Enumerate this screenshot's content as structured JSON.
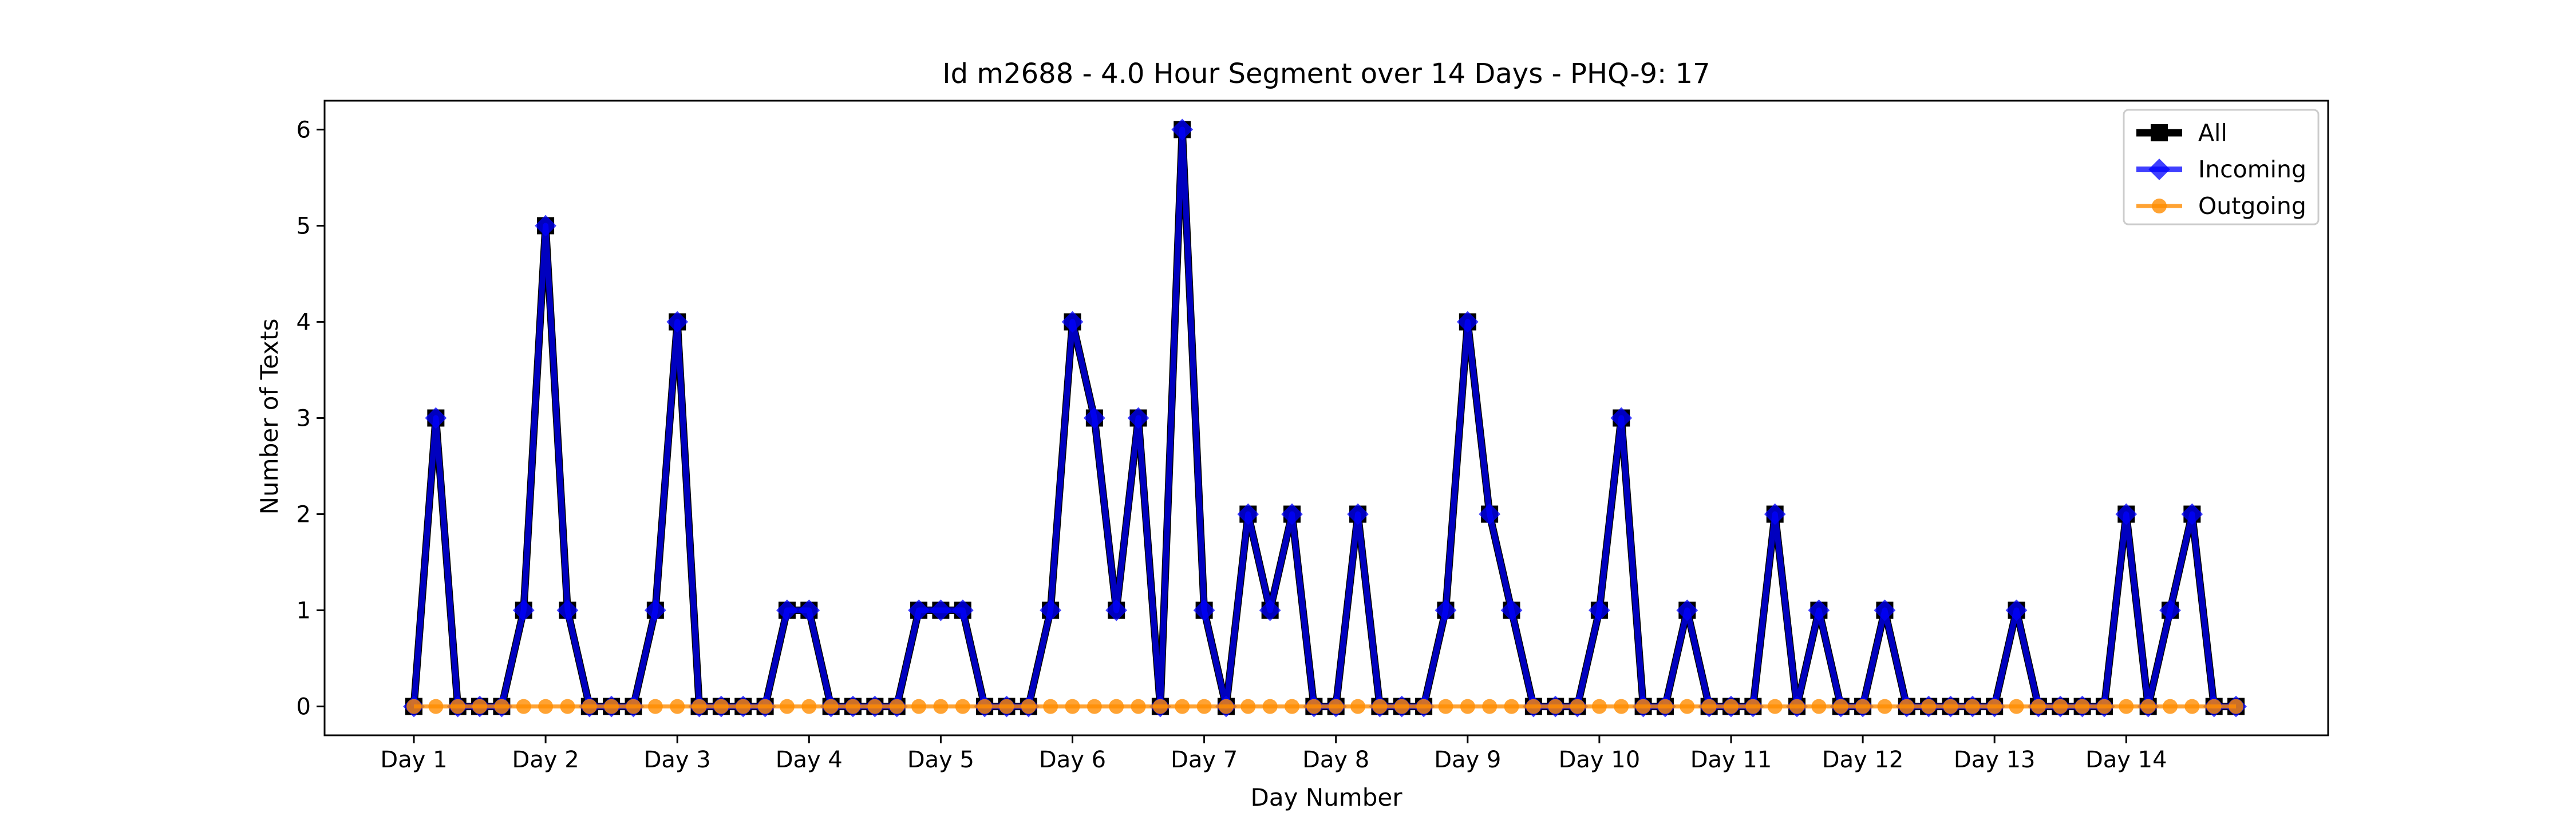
{
  "chart_data": {
    "type": "line",
    "title": "Id m2688 - 4.0 Hour Segment over 14 Days - PHQ-9: 17",
    "xlabel": "Day Number",
    "ylabel": "Number of Texts",
    "x_tick_labels": [
      "Day 1",
      "Day 2",
      "Day 3",
      "Day 4",
      "Day 5",
      "Day 6",
      "Day 7",
      "Day 8",
      "Day 9",
      "Day 10",
      "Day 11",
      "Day 12",
      "Day 13",
      "Day 14"
    ],
    "y_ticks": [
      0,
      1,
      2,
      3,
      4,
      5,
      6
    ],
    "ylim": [
      -0.3,
      6.3
    ],
    "grid": false,
    "legend_position": "top-right",
    "legend": [
      "All",
      "Incoming",
      "Outgoing"
    ],
    "series": [
      {
        "name": "All",
        "color": "#000000",
        "marker": "square",
        "values": [
          0,
          3,
          0,
          0,
          0,
          1,
          5,
          1,
          0,
          0,
          0,
          1,
          4,
          0,
          0,
          0,
          0,
          1,
          1,
          0,
          0,
          0,
          0,
          1,
          1,
          1,
          0,
          0,
          0,
          1,
          4,
          3,
          1,
          3,
          0,
          6,
          1,
          0,
          2,
          1,
          2,
          0,
          0,
          2,
          0,
          0,
          0,
          1,
          4,
          2,
          1,
          0,
          0,
          0,
          1,
          3,
          0,
          0,
          1,
          0,
          0,
          0,
          2,
          0,
          1,
          0,
          0,
          1,
          0,
          0,
          0,
          0,
          0,
          1,
          0,
          0,
          0,
          0,
          2,
          0,
          1,
          2,
          0,
          0
        ]
      },
      {
        "name": "Incoming",
        "color": "#0000ff",
        "marker": "diamond",
        "values": [
          0,
          3,
          0,
          0,
          0,
          1,
          5,
          1,
          0,
          0,
          0,
          1,
          4,
          0,
          0,
          0,
          0,
          1,
          1,
          0,
          0,
          0,
          0,
          1,
          1,
          1,
          0,
          0,
          0,
          1,
          4,
          3,
          1,
          3,
          0,
          6,
          1,
          0,
          2,
          1,
          2,
          0,
          0,
          2,
          0,
          0,
          0,
          1,
          4,
          2,
          1,
          0,
          0,
          0,
          1,
          3,
          0,
          0,
          1,
          0,
          0,
          0,
          2,
          0,
          1,
          0,
          0,
          1,
          0,
          0,
          0,
          0,
          0,
          1,
          0,
          0,
          0,
          0,
          2,
          0,
          1,
          2,
          0,
          0
        ]
      },
      {
        "name": "Outgoing",
        "color": "#ff8c00",
        "marker": "circle",
        "values": [
          0,
          0,
          0,
          0,
          0,
          0,
          0,
          0,
          0,
          0,
          0,
          0,
          0,
          0,
          0,
          0,
          0,
          0,
          0,
          0,
          0,
          0,
          0,
          0,
          0,
          0,
          0,
          0,
          0,
          0,
          0,
          0,
          0,
          0,
          0,
          0,
          0,
          0,
          0,
          0,
          0,
          0,
          0,
          0,
          0,
          0,
          0,
          0,
          0,
          0,
          0,
          0,
          0,
          0,
          0,
          0,
          0,
          0,
          0,
          0,
          0,
          0,
          0,
          0,
          0,
          0,
          0,
          0,
          0,
          0,
          0,
          0,
          0,
          0,
          0,
          0,
          0,
          0,
          0,
          0,
          0,
          0,
          0,
          0
        ]
      }
    ]
  }
}
